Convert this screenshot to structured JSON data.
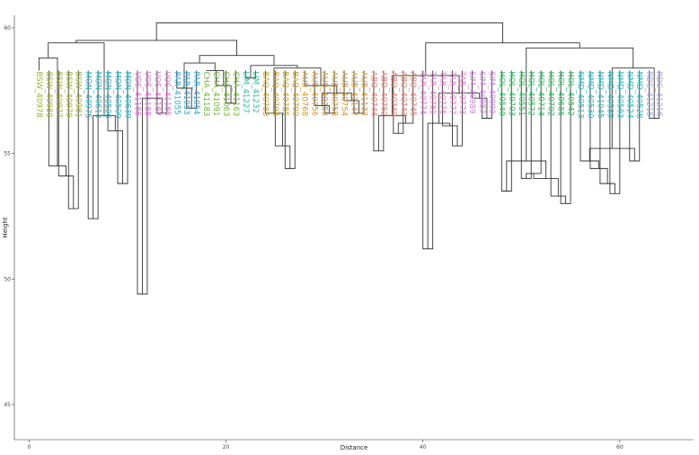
{
  "chart_data": {
    "type": "dendrogram",
    "title": "",
    "xlabel": "Distance",
    "ylabel": "Height",
    "x_ticks": [
      0,
      20,
      40,
      60
    ],
    "y_ticks": [
      45,
      50,
      55,
      60
    ],
    "xlim": [
      -1.5,
      67.5
    ],
    "ylim": [
      43.6,
      60.5
    ],
    "label_order": [
      "BSW_40978",
      "BSW_40980",
      "BSW_40977",
      "BSW_40979",
      "BSW_40981",
      "MON_40975",
      "MON_40613",
      "MON_40506",
      "MON_40509",
      "MON_40639",
      "VOS_41186",
      "VOS_41188",
      "VOS_41187",
      "VOS_41185",
      "PAR_41055",
      "PAR_41053",
      "PAR_41054",
      "CHA_41183",
      "CHA_41091",
      "CHA_41063",
      "CHA_41163",
      "LIM_41227",
      "LIM_41232",
      "BAQ_40783",
      "BAQ_40794",
      "BAQ_40785",
      "BAQ_40790",
      "AUB_40768",
      "AUB_40756",
      "AUB_40755",
      "AUB_40758",
      "AUB_40754",
      "AUB_41147",
      "AUB_41133",
      "ABO_40744",
      "ABO_40752",
      "ABO_40740",
      "ABO_40743",
      "ABO_40745",
      "TAR_40774",
      "TAR_40781",
      "TAR_40776",
      "TAR_40777",
      "TAR_40773",
      "SIM_40989",
      "SIM_40987",
      "SIM_40990",
      "HOL_40549",
      "HOL_40703",
      "HOL_40551",
      "HOL_40572",
      "HOL_40714",
      "HOL_40702",
      "HOL_40686",
      "HOL_40542",
      "NMD_40513",
      "NMD_40530",
      "NMD_41045",
      "NMD_40585",
      "NMD_40593",
      "NMD_40524",
      "NMD_40528",
      "RDC_41215",
      "RDC_41216"
    ],
    "leaf_height": 58.3,
    "merges": [
      {
        "id": "m1",
        "children": [
          "MON_40975",
          "MON_40613"
        ],
        "height": 52.4
      },
      {
        "id": "m2",
        "children": [
          "BSW_40979",
          "BSW_40981"
        ],
        "height": 52.8
      },
      {
        "id": "m3",
        "children": [
          "BSW_40977",
          "m2"
        ],
        "height": 54.1
      },
      {
        "id": "m4",
        "children": [
          "BSW_40980",
          "m3"
        ],
        "height": 54.5
      },
      {
        "id": "m5",
        "children": [
          "BSW_40978",
          "m4"
        ],
        "height": 58.8
      },
      {
        "id": "m6",
        "children": [
          "MON_40509",
          "MON_40639"
        ],
        "height": 53.8
      },
      {
        "id": "m7",
        "children": [
          "MON_40506",
          "m6"
        ],
        "height": 55.9
      },
      {
        "id": "m8",
        "children": [
          "m1",
          "m7"
        ],
        "height": 56.5
      },
      {
        "id": "m9",
        "children": [
          "VOS_41186",
          "VOS_41188"
        ],
        "height": 49.4
      },
      {
        "id": "m10",
        "children": [
          "VOS_41187",
          "VOS_41185"
        ],
        "height": 56.6
      },
      {
        "id": "m11",
        "children": [
          "m9",
          "m10"
        ],
        "height": 57.2
      },
      {
        "id": "m12",
        "children": [
          "PAR_41053",
          "PAR_41054"
        ],
        "height": 56.8
      },
      {
        "id": "m13",
        "children": [
          "PAR_41055",
          "m12"
        ],
        "height": 57.6
      },
      {
        "id": "m14",
        "children": [
          "CHA_41063",
          "CHA_41163"
        ],
        "height": 57.0
      },
      {
        "id": "m15",
        "children": [
          "CHA_41091",
          "m14"
        ],
        "height": 57.7
      },
      {
        "id": "m16",
        "children": [
          "CHA_41183",
          "m15"
        ],
        "height": 58.3
      },
      {
        "id": "m17",
        "children": [
          "m13",
          "m16"
        ],
        "height": 58.6
      },
      {
        "id": "m18",
        "children": [
          "LIM_41227",
          "LIM_41232"
        ],
        "height": 58.0
      },
      {
        "id": "m19",
        "children": [
          "BAQ_40785",
          "BAQ_40790"
        ],
        "height": 54.4
      },
      {
        "id": "m20",
        "children": [
          "BAQ_40794",
          "m19"
        ],
        "height": 55.3
      },
      {
        "id": "m21",
        "children": [
          "BAQ_40783",
          "m20"
        ],
        "height": 56.6
      },
      {
        "id": "m22",
        "children": [
          "AUB_40755",
          "AUB_40758"
        ],
        "height": 56.6
      },
      {
        "id": "m23",
        "children": [
          "AUB_40756",
          "m22"
        ],
        "height": 56.9
      },
      {
        "id": "m24",
        "children": [
          "AUB_41147",
          "AUB_41133"
        ],
        "height": 56.6
      },
      {
        "id": "m25",
        "children": [
          "AUB_40754",
          "m24"
        ],
        "height": 57.1
      },
      {
        "id": "m26",
        "children": [
          "m23",
          "m25"
        ],
        "height": 57.4
      },
      {
        "id": "m27",
        "children": [
          "AUB_40768",
          "m26"
        ],
        "height": 57.7
      },
      {
        "id": "m28",
        "children": [
          "m21",
          "m27"
        ],
        "height": 58.4
      },
      {
        "id": "m29",
        "children": [
          "m18",
          "m28"
        ],
        "height": 58.5
      },
      {
        "id": "m30",
        "children": [
          "m17",
          "m29"
        ],
        "height": 58.9
      },
      {
        "id": "m31",
        "children": [
          "ABO_40744",
          "ABO_40752"
        ],
        "height": 55.1
      },
      {
        "id": "m32",
        "children": [
          "ABO_40740",
          "ABO_40743"
        ],
        "height": 55.8
      },
      {
        "id": "m33",
        "children": [
          "m32",
          "ABO_40745"
        ],
        "height": 56.2
      },
      {
        "id": "m34",
        "children": [
          "m31",
          "m33"
        ],
        "height": 56.5
      },
      {
        "id": "m35",
        "children": [
          "TAR_40774",
          "TAR_40781"
        ],
        "height": 51.2
      },
      {
        "id": "m36",
        "children": [
          "TAR_40777",
          "TAR_40773"
        ],
        "height": 55.3
      },
      {
        "id": "m37",
        "children": [
          "TAR_40776",
          "m36"
        ],
        "height": 56.1
      },
      {
        "id": "m38",
        "children": [
          "m35",
          "m37"
        ],
        "height": 56.2
      },
      {
        "id": "m39",
        "children": [
          "SIM_40987",
          "SIM_40990"
        ],
        "height": 56.4
      },
      {
        "id": "m40",
        "children": [
          "SIM_40989",
          "m39"
        ],
        "height": 57.2
      },
      {
        "id": "m41",
        "children": [
          "m38",
          "m40"
        ],
        "height": 57.4
      },
      {
        "id": "m42",
        "children": [
          "m34",
          "m41"
        ],
        "height": 58.1
      },
      {
        "id": "m43",
        "children": [
          "HOL_40549",
          "HOL_40703"
        ],
        "height": 53.5
      },
      {
        "id": "m44",
        "children": [
          "HOL_40551",
          "HOL_40572"
        ],
        "height": 54.0
      },
      {
        "id": "m45",
        "children": [
          "m44",
          "HOL_40714"
        ],
        "height": 54.2
      },
      {
        "id": "m46",
        "children": [
          "HOL_40686",
          "HOL_40542"
        ],
        "height": 53.0
      },
      {
        "id": "m47",
        "children": [
          "HOL_40702",
          "m46"
        ],
        "height": 53.3
      },
      {
        "id": "m48",
        "children": [
          "m45",
          "m47"
        ],
        "height": 54.0
      },
      {
        "id": "m49",
        "children": [
          "m43",
          "m48"
        ],
        "height": 54.7
      },
      {
        "id": "m50",
        "children": [
          "NMD_40585",
          "NMD_40593"
        ],
        "height": 53.4
      },
      {
        "id": "m51",
        "children": [
          "NMD_41045",
          "m50"
        ],
        "height": 53.8
      },
      {
        "id": "m52",
        "children": [
          "NMD_40530",
          "m51"
        ],
        "height": 54.4
      },
      {
        "id": "m53",
        "children": [
          "NMD_40513",
          "m52"
        ],
        "height": 54.7
      },
      {
        "id": "m54",
        "children": [
          "NMD_40524",
          "NMD_40528"
        ],
        "height": 54.7
      },
      {
        "id": "m55",
        "children": [
          "m53",
          "m54"
        ],
        "height": 55.2
      },
      {
        "id": "m56",
        "children": [
          "RDC_41215",
          "RDC_41216"
        ],
        "height": 56.4
      },
      {
        "id": "m57",
        "children": [
          "m55",
          "m56"
        ],
        "height": 58.4
      },
      {
        "id": "m58",
        "children": [
          "m49",
          "m57"
        ],
        "height": 59.2
      },
      {
        "id": "m59",
        "children": [
          "m42",
          "m58"
        ],
        "height": 59.4
      },
      {
        "id": "m60",
        "children": [
          "m5",
          "m8"
        ],
        "height": 59.4
      },
      {
        "id": "m61",
        "children": [
          "m60",
          "m30"
        ],
        "height": 59.5
      },
      {
        "id": "m62",
        "children": [
          "m61",
          "m59"
        ],
        "height": 60.2
      }
    ],
    "groups": [
      {
        "name": "BSW",
        "color": "#9fae2b"
      },
      {
        "name": "MON",
        "color": "#22b2c2"
      },
      {
        "name": "VOS",
        "color": "#e56ad6"
      },
      {
        "name": "PAR",
        "color": "#28a5d9"
      },
      {
        "name": "CHA",
        "color": "#6bb52f"
      },
      {
        "name": "LIM",
        "color": "#2ebd9c"
      },
      {
        "name": "BAQ",
        "color": "#c49c1f"
      },
      {
        "name": "AUB",
        "color": "#d59223"
      },
      {
        "name": "ABO",
        "color": "#ec7a6e"
      },
      {
        "name": "TAR",
        "color": "#ea6bc9"
      },
      {
        "name": "SIM",
        "color": "#d07ae9"
      },
      {
        "name": "HOL",
        "color": "#2fb65e"
      },
      {
        "name": "NMD",
        "color": "#21bcc4"
      },
      {
        "name": "RDC",
        "color": "#a99ee8"
      }
    ],
    "grid": false,
    "legend": "none"
  }
}
